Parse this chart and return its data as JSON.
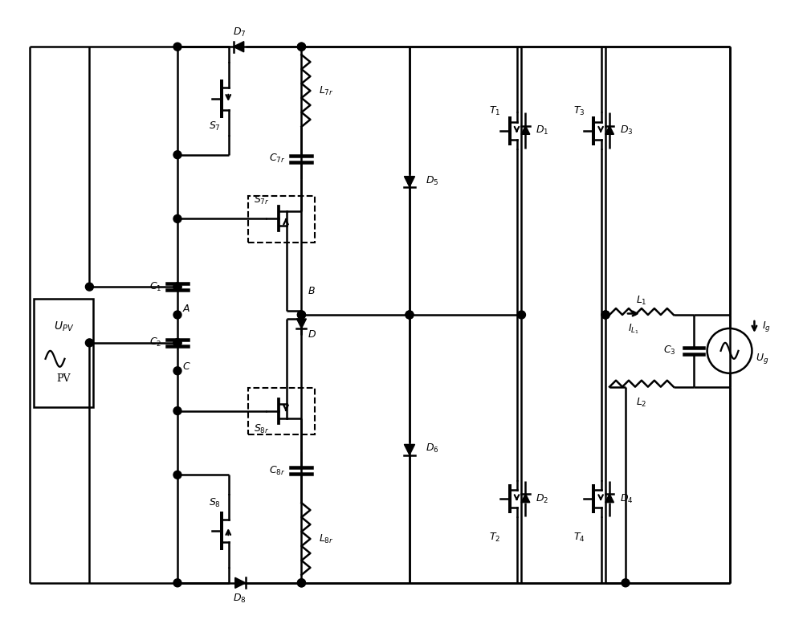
{
  "bg": "#ffffff",
  "lc": "#000000",
  "lw": 1.8,
  "fw": 10.0,
  "fh": 7.82,
  "dpi": 100
}
